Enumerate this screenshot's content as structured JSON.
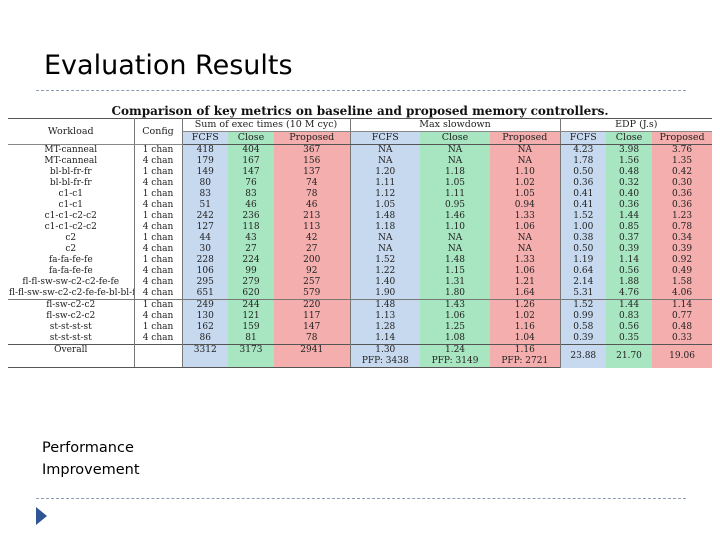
{
  "slide": {
    "title": "Evaluation Results",
    "caption": "Performance Improvement"
  },
  "table": {
    "caption": "Comparison of key metrics on baseline and proposed memory controllers.",
    "groups": {
      "workload": "Workload",
      "config": "Config",
      "exec": "Sum of exec times (10 M cyc)",
      "slowdown": "Max slowdown",
      "edp": "EDP (J.s)"
    },
    "subheaders": [
      "FCFS",
      "Close",
      "Proposed",
      "FCFS",
      "Close",
      "Proposed",
      "FCFS",
      "Close",
      "Proposed"
    ],
    "rows": [
      [
        "MT-canneal",
        "1 chan",
        "418",
        "404",
        "367",
        "NA",
        "NA",
        "NA",
        "4.23",
        "3.98",
        "3.76"
      ],
      [
        "MT-canneal",
        "4 chan",
        "179",
        "167",
        "156",
        "NA",
        "NA",
        "NA",
        "1.78",
        "1.56",
        "1.35"
      ],
      [
        "bl-bl-fr-fr",
        "1 chan",
        "149",
        "147",
        "137",
        "1.20",
        "1.18",
        "1.10",
        "0.50",
        "0.48",
        "0.42"
      ],
      [
        "bl-bl-fr-fr",
        "4 chan",
        "80",
        "76",
        "74",
        "1.11",
        "1.05",
        "1.02",
        "0.36",
        "0.32",
        "0.30"
      ],
      [
        "c1-c1",
        "1 chan",
        "83",
        "83",
        "78",
        "1.12",
        "1.11",
        "1.05",
        "0.41",
        "0.40",
        "0.36"
      ],
      [
        "c1-c1",
        "4 chan",
        "51",
        "46",
        "46",
        "1.05",
        "0.95",
        "0.94",
        "0.41",
        "0.36",
        "0.36"
      ],
      [
        "c1-c1-c2-c2",
        "1 chan",
        "242",
        "236",
        "213",
        "1.48",
        "1.46",
        "1.33",
        "1.52",
        "1.44",
        "1.23"
      ],
      [
        "c1-c1-c2-c2",
        "4 chan",
        "127",
        "118",
        "113",
        "1.18",
        "1.10",
        "1.06",
        "1.00",
        "0.85",
        "0.78"
      ],
      [
        "c2",
        "1 chan",
        "44",
        "43",
        "42",
        "NA",
        "NA",
        "NA",
        "0.38",
        "0.37",
        "0.34"
      ],
      [
        "c2",
        "4 chan",
        "30",
        "27",
        "27",
        "NA",
        "NA",
        "NA",
        "0.50",
        "0.39",
        "0.39"
      ],
      [
        "fa-fa-fe-fe",
        "1 chan",
        "228",
        "224",
        "200",
        "1.52",
        "1.48",
        "1.33",
        "1.19",
        "1.14",
        "0.92"
      ],
      [
        "fa-fa-fe-fe",
        "4 chan",
        "106",
        "99",
        "92",
        "1.22",
        "1.15",
        "1.06",
        "0.64",
        "0.56",
        "0.49"
      ],
      [
        "fl-fl-sw-sw-c2-c2-fe-fe",
        "4 chan",
        "295",
        "279",
        "257",
        "1.40",
        "1.31",
        "1.21",
        "2.14",
        "1.88",
        "1.58"
      ],
      [
        "fl-fl-sw-sw-c2-c2-fe-fe-bl-bl-fr-fr-c1-c1-st-st",
        "4 chan",
        "651",
        "620",
        "579",
        "1.90",
        "1.80",
        "1.64",
        "5.31",
        "4.76",
        "4.06"
      ],
      [
        "fl-sw-c2-c2",
        "1 chan",
        "249",
        "244",
        "220",
        "1.48",
        "1.43",
        "1.26",
        "1.52",
        "1.44",
        "1.14"
      ],
      [
        "fl-sw-c2-c2",
        "4 chan",
        "130",
        "121",
        "117",
        "1.13",
        "1.06",
        "1.02",
        "0.99",
        "0.83",
        "0.77"
      ],
      [
        "st-st-st-st",
        "1 chan",
        "162",
        "159",
        "147",
        "1.28",
        "1.25",
        "1.16",
        "0.58",
        "0.56",
        "0.48"
      ],
      [
        "st-st-st-st",
        "4 chan",
        "86",
        "81",
        "78",
        "1.14",
        "1.08",
        "1.04",
        "0.39",
        "0.35",
        "0.33"
      ]
    ],
    "overall": {
      "label": "Overall",
      "exec": [
        "3312",
        "3173",
        "2941"
      ],
      "slowdown": [
        "1.30",
        "1.24",
        "1.16"
      ],
      "pfp": [
        "PFP: 3438",
        "PFP: 3149",
        "PFP: 2721"
      ],
      "edp": [
        "23.88",
        "21.70",
        "19.06"
      ]
    },
    "colors": {
      "fcfs": "#c7d9ef",
      "close": "#a8e6c2",
      "proposed": "#f5aeae"
    }
  }
}
